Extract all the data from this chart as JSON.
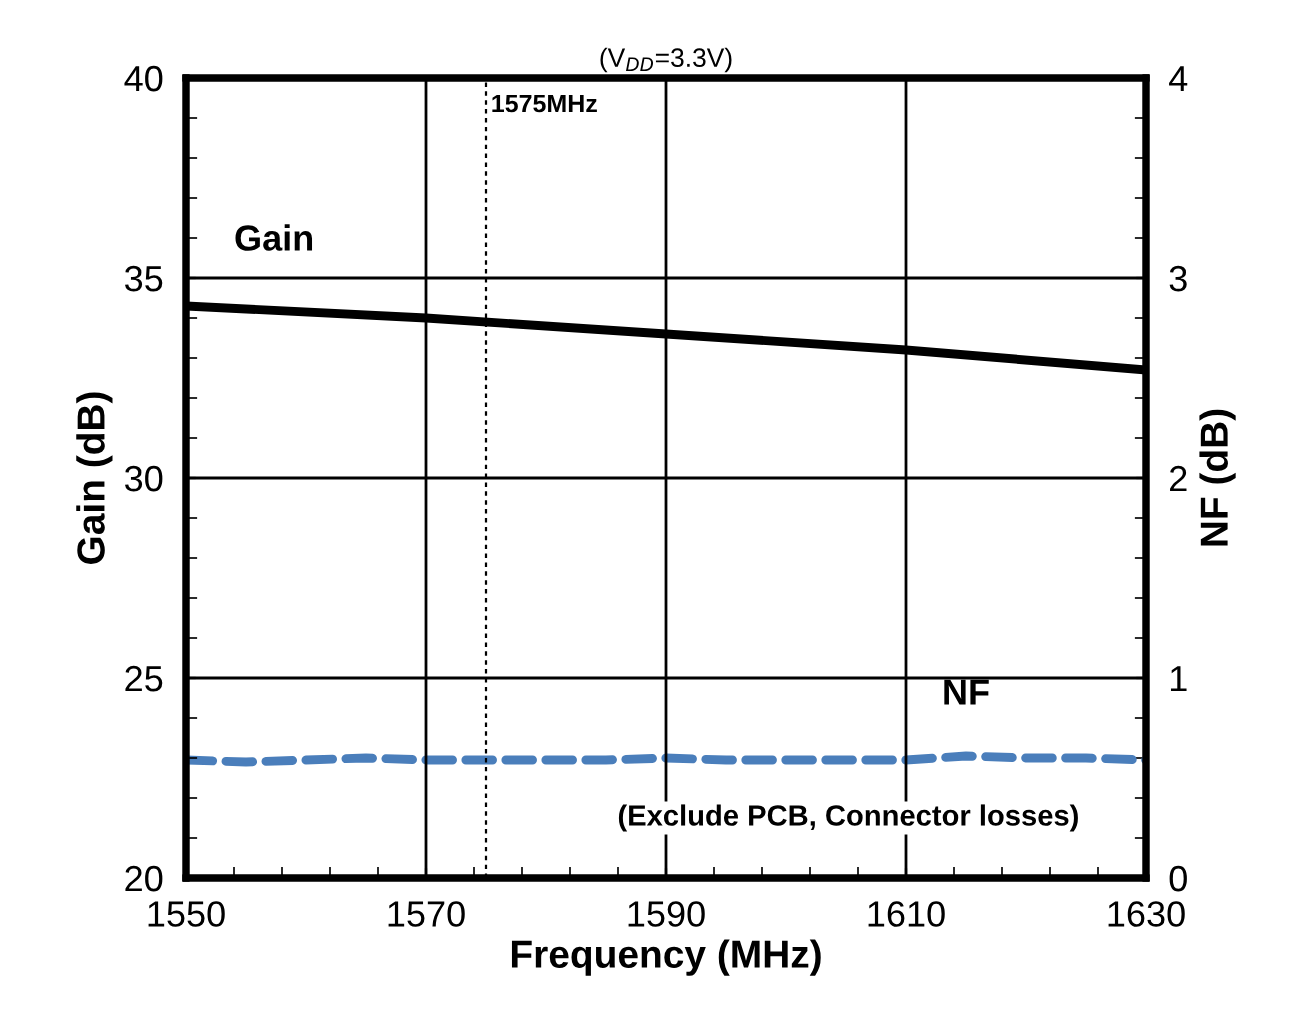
{
  "chart_data": {
    "type": "line",
    "title": "(V$_{DD}$=3.3V)",
    "xlabel": "Frequency (MHz)",
    "ylabel": "Gain (dB)",
    "y2label": "NF (dB)",
    "xlim": [
      1550,
      1630
    ],
    "xticks": [
      1550,
      1570,
      1590,
      1610,
      1630
    ],
    "ylim": [
      20,
      40
    ],
    "yticks": [
      20,
      25,
      30,
      35,
      40
    ],
    "y2lim": [
      0,
      4
    ],
    "y2ticks": [
      0,
      1,
      2,
      3,
      4
    ],
    "grid": true,
    "series": [
      {
        "name": "Gain",
        "color": "#000000",
        "line_style": "solid",
        "x": [
          1550,
          1570,
          1590,
          1610,
          1630
        ],
        "values": [
          34.3,
          34.0,
          33.6,
          33.2,
          32.7
        ]
      },
      {
        "name": "NF",
        "color": "#4a7ebb",
        "line_style": "dashed",
        "axis": "y2",
        "x": [
          1550,
          1555,
          1560,
          1565,
          1570,
          1575,
          1580,
          1585,
          1590,
          1595,
          1600,
          1605,
          1610,
          1615,
          1620,
          1625,
          1630
        ],
        "values": [
          0.59,
          0.58,
          0.59,
          0.6,
          0.59,
          0.59,
          0.59,
          0.59,
          0.6,
          0.59,
          0.59,
          0.59,
          0.59,
          0.61,
          0.6,
          0.6,
          0.59
        ]
      }
    ],
    "ref_lines": [
      {
        "axis": "x",
        "value": 1575,
        "label": "1575MHz",
        "color": "#000000",
        "line_style": "dotted"
      }
    ],
    "annotations": [
      "(Exclude PCB, Connector losses)"
    ]
  }
}
